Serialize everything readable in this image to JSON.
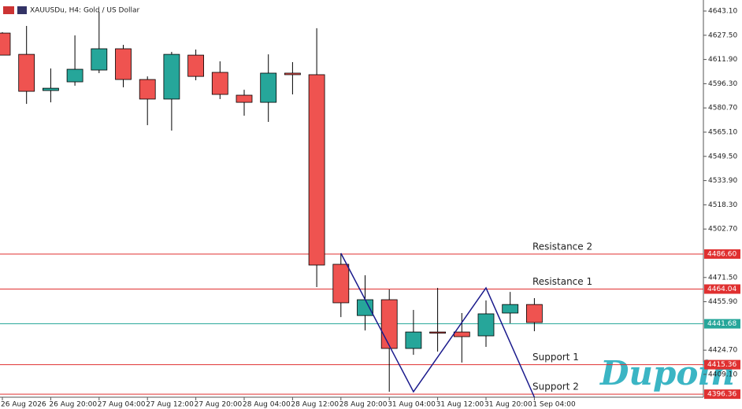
{
  "chart_data": {
    "type": "candlestick",
    "title": "XAUUSDu, H4:  Gold / US Dollar",
    "watermark": "Dupoin",
    "categories": [
      "26 Aug 2026",
      null,
      "26 Aug 20:00",
      null,
      "27 Aug 04:00",
      null,
      "27 Aug 12:00",
      null,
      "27 Aug 20:00",
      null,
      "28 Aug 04:00",
      null,
      "28 Aug 12:00",
      null,
      "28 Aug 20:00",
      null,
      "31 Aug 04:00",
      null,
      "31 Aug 12:00",
      null,
      "31 Aug 20:00",
      null,
      "1 Sep 04:00"
    ],
    "open": [
      4628.9,
      4615.2,
      4591.9,
      4597.5,
      4605.1,
      4618.8,
      4599.0,
      4586.4,
      4614.7,
      4603.6,
      4588.9,
      4584.3,
      4603.1,
      4602.1,
      4480.0,
      4447.0,
      4457.2,
      4425.8,
      4436.4,
      4436.4,
      4433.9,
      4448.6,
      4454.1
    ],
    "high": [
      4629.5,
      4633.5,
      4606.1,
      4627.4,
      4642.6,
      4621.3,
      4601.0,
      4616.8,
      4618.3,
      4610.7,
      4592.4,
      4615.2,
      4610.2,
      4632.0,
      4487.1,
      4472.9,
      4463.8,
      4450.6,
      4464.8,
      4448.6,
      4456.7,
      4462.2,
      4458.2
    ],
    "low": [
      4614.7,
      4583.3,
      4584.3,
      4595.0,
      4603.1,
      4594.0,
      4569.6,
      4566.1,
      4598.5,
      4586.4,
      4575.7,
      4571.7,
      4589.4,
      4465.3,
      4446.0,
      4437.4,
      4397.9,
      4421.7,
      4423.8,
      4416.7,
      4426.8,
      4442.0,
      4436.9
    ],
    "close": [
      4614.7,
      4591.4,
      4593.4,
      4605.6,
      4618.8,
      4599.0,
      4586.4,
      4615.2,
      4601.0,
      4589.4,
      4584.3,
      4603.1,
      4602.1,
      4479.5,
      4455.2,
      4457.2,
      4425.8,
      4436.4,
      4436.2,
      4433.4,
      4448.1,
      4454.1,
      4442.5
    ],
    "up_color": "#26a69a",
    "down_color": "#ef5350",
    "ylim": [
      4394.4,
      4650.2
    ],
    "yticks": [
      {
        "value": 4643.1,
        "label": "4643.10"
      },
      {
        "value": 4627.5,
        "label": "4627.50"
      },
      {
        "value": 4611.9,
        "label": "4611.90"
      },
      {
        "value": 4596.3,
        "label": "4596.30"
      },
      {
        "value": 4580.7,
        "label": "4580.70"
      },
      {
        "value": 4565.1,
        "label": "4565.10"
      },
      {
        "value": 4549.5,
        "label": "4549.50"
      },
      {
        "value": 4533.9,
        "label": "4533.90"
      },
      {
        "value": 4518.3,
        "label": "4518.30"
      },
      {
        "value": 4502.7,
        "label": "4502.70"
      },
      {
        "value": 4471.5,
        "label": "4471.50"
      },
      {
        "value": 4455.9,
        "label": "4455.90"
      },
      {
        "value": 4424.7,
        "label": "4424.70"
      },
      {
        "value": 4409.1,
        "label": "4409.10"
      }
    ],
    "levels": [
      {
        "name": "Resistance 2",
        "value": 4486.6,
        "label": "4486.60",
        "color": "#e03030"
      },
      {
        "name": "Resistance 1",
        "value": 4464.04,
        "label": "4464.04",
        "color": "#e03030"
      },
      {
        "value": 4441.68,
        "label": "4441.68",
        "color": "#26a69a"
      },
      {
        "name": "Support 1",
        "value": 4415.36,
        "label": "4415.36",
        "color": "#e03030"
      },
      {
        "name": "Support 2",
        "value": 4396.36,
        "label": "4396.36",
        "color": "#e03030"
      }
    ],
    "zigzag": {
      "color": "#1a1a8c",
      "x": [
        14,
        17,
        20,
        22
      ],
      "values": [
        4487.1,
        4397.9,
        4464.8,
        4394.4
      ]
    }
  }
}
